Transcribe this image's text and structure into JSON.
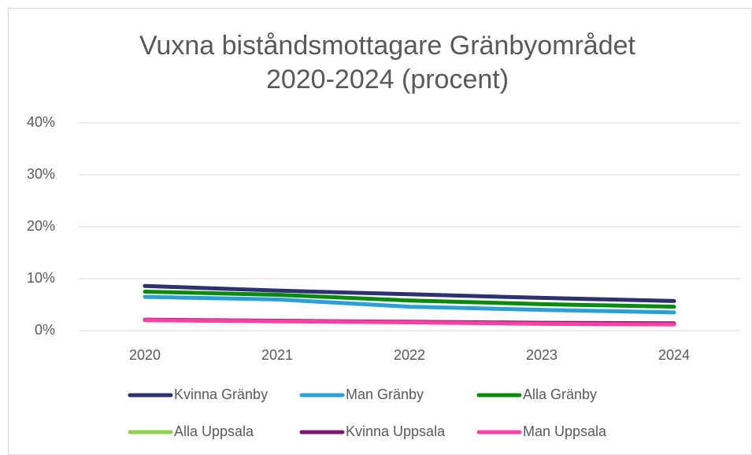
{
  "chart_data": {
    "type": "line",
    "title": [
      "Vuxna biståndsmottagare Gränbyområdet",
      "2020-2024 (procent)"
    ],
    "categories": [
      "2020",
      "2021",
      "2022",
      "2023",
      "2024"
    ],
    "series": [
      {
        "name": "Kvinna Gränby",
        "color": "#2e3170",
        "values": [
          8.6,
          7.7,
          7.0,
          6.3,
          5.7
        ]
      },
      {
        "name": "Man Gränby",
        "color": "#2a9fd8",
        "values": [
          6.5,
          6.0,
          4.6,
          4.0,
          3.5
        ]
      },
      {
        "name": "Alla Gränby",
        "color": "#0a8a0a",
        "values": [
          7.5,
          6.9,
          5.8,
          5.1,
          4.6
        ]
      },
      {
        "name": "Alla Uppsala",
        "color": "#92d050",
        "values": [
          2.0,
          1.9,
          1.6,
          1.4,
          1.3
        ]
      },
      {
        "name": "Kvinna Uppsala",
        "color": "#7a1a6e",
        "values": [
          2.1,
          1.9,
          1.7,
          1.5,
          1.4
        ]
      },
      {
        "name": "Man Uppsala",
        "color": "#ff3fa4",
        "values": [
          2.0,
          1.8,
          1.6,
          1.3,
          1.2
        ]
      }
    ],
    "ylim": [
      0,
      40
    ],
    "yticks": [
      {
        "value": 0,
        "label": "0%"
      },
      {
        "value": 10,
        "label": "10%"
      },
      {
        "value": 20,
        "label": "20%"
      },
      {
        "value": 30,
        "label": "30%"
      },
      {
        "value": 40,
        "label": "40%"
      }
    ],
    "grid": true,
    "legend": "bottom"
  }
}
